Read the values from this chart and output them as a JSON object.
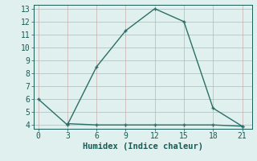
{
  "xlabel": "Humidex (Indice chaleur)",
  "line1_x": [
    0,
    3,
    6,
    9,
    12,
    15,
    18,
    21
  ],
  "line1_y": [
    6,
    4,
    8.5,
    11.3,
    13,
    12,
    5.3,
    3.9
  ],
  "line2_x": [
    3,
    6,
    9,
    12,
    15,
    18,
    21
  ],
  "line2_y": [
    4.1,
    4.0,
    4.0,
    4.0,
    4.0,
    4.0,
    3.9
  ],
  "line_color": "#2a6e68",
  "bg_color": "#dff0ee",
  "grid_color": "#c8a8a8",
  "text_color": "#1a5a55",
  "xlim": [
    -0.5,
    22
  ],
  "ylim": [
    3.7,
    13.3
  ],
  "xticks": [
    0,
    3,
    6,
    9,
    12,
    15,
    18,
    21
  ],
  "yticks": [
    4,
    5,
    6,
    7,
    8,
    9,
    10,
    11,
    12,
    13
  ],
  "markersize": 3.5,
  "linewidth": 1.0,
  "xlabel_fontsize": 7.5,
  "tick_fontsize": 7
}
